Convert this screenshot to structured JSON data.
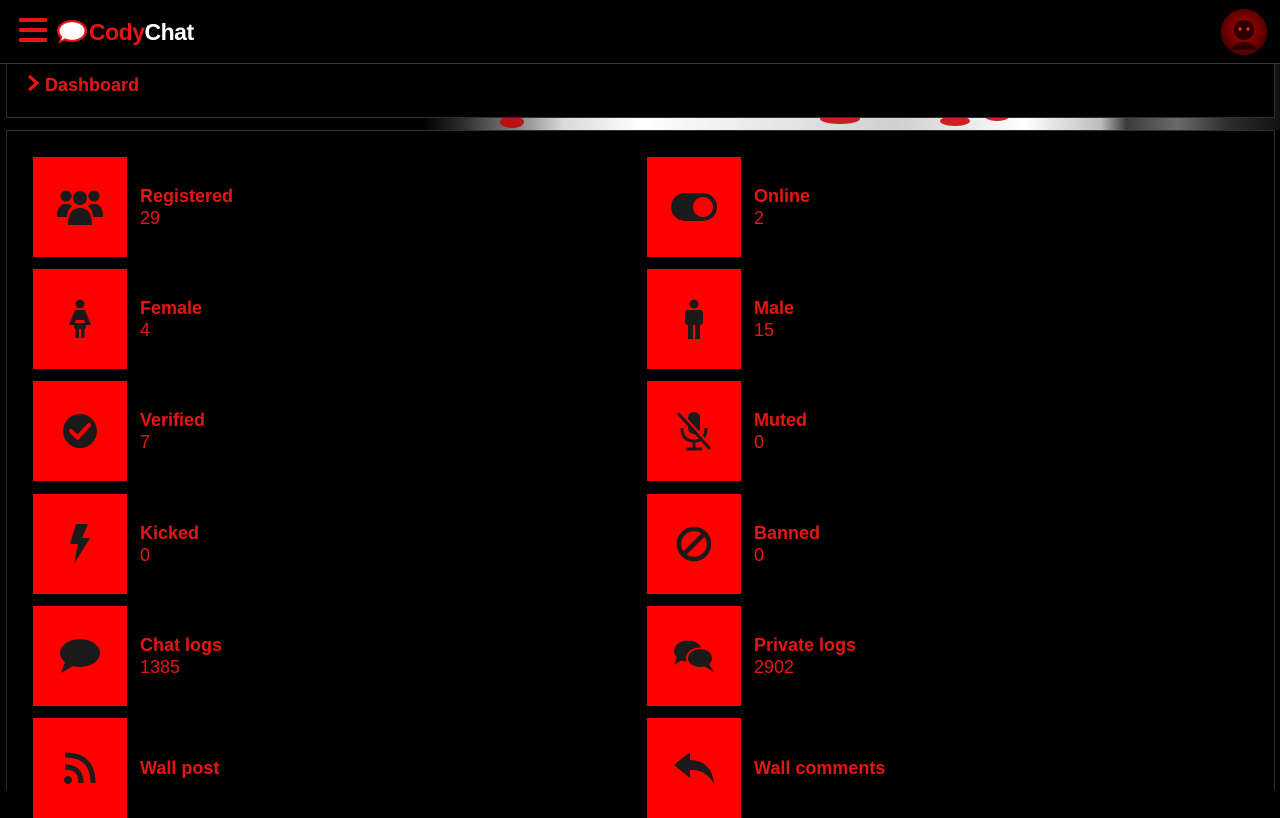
{
  "header": {
    "brand_part1": "Cody",
    "brand_part2": "Chat"
  },
  "breadcrumb": {
    "label": "Dashboard"
  },
  "stats": [
    {
      "title": "Registered",
      "value": "29",
      "icon": "users-icon"
    },
    {
      "title": "Online",
      "value": "2",
      "icon": "toggle-on-icon"
    },
    {
      "title": "Female",
      "value": "4",
      "icon": "female-icon"
    },
    {
      "title": "Male",
      "value": "15",
      "icon": "male-icon"
    },
    {
      "title": "Verified",
      "value": "7",
      "icon": "check-circle-icon"
    },
    {
      "title": "Muted",
      "value": "0",
      "icon": "microphone-slash-icon"
    },
    {
      "title": "Kicked",
      "value": "0",
      "icon": "bolt-icon"
    },
    {
      "title": "Banned",
      "value": "0",
      "icon": "ban-icon"
    },
    {
      "title": "Chat logs",
      "value": "1385",
      "icon": "comment-icon"
    },
    {
      "title": "Private logs",
      "value": "2902",
      "icon": "comments-icon"
    },
    {
      "title": "Wall post",
      "value": "",
      "icon": "rss-icon"
    },
    {
      "title": "Wall comments",
      "value": "",
      "icon": "reply-icon"
    }
  ],
  "colors": {
    "accent": "#ff0000",
    "text_accent": "#e81515",
    "background": "#000000",
    "icon_dark": "#1a1a1a"
  }
}
